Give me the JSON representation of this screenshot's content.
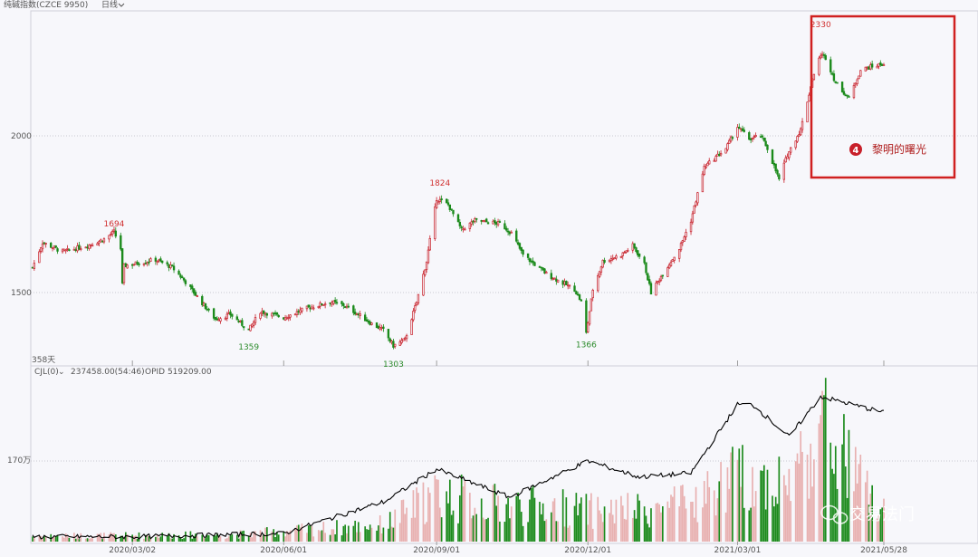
{
  "header": {
    "title": "纯碱指数(CZCE 9950)",
    "period": "日线"
  },
  "price_panel": {
    "yticks": [
      "2000",
      "1500"
    ],
    "days_label": "358天"
  },
  "volume_panel": {
    "indicator": "CJL(0)",
    "indicator_arrow": "⌄",
    "value1": "237458.00(54:46)",
    "value2": "OPID 519209.00",
    "ytick": "170万"
  },
  "annotation": {
    "number": "4",
    "text": "黎明的曙光"
  },
  "watermark": {
    "text": "交易法门"
  },
  "colors": {
    "up": "#c8202a",
    "down": "#1b8a1b",
    "vol_up": "#e8b0b0",
    "vol_down": "#1b8a1b",
    "oi_line": "#000000",
    "box": "#d02020"
  },
  "chart_data": {
    "type": "candlestick",
    "ylim": [
      1300,
      2400
    ],
    "yticks": [
      2000,
      1500
    ],
    "xticks": [
      "2020/03/02",
      "2020/06/01",
      "2020/09/01",
      "2020/12/01",
      "2021/03/01",
      "2021/05/28"
    ],
    "x_range": [
      "2020/01/02",
      "2021/05/28"
    ],
    "close_keypoints": [
      [
        "2020/01/02",
        1580
      ],
      [
        "2020/01/08",
        1660
      ],
      [
        "2020/01/20",
        1630
      ],
      [
        "2020/02/04",
        1650
      ],
      [
        "2020/02/14",
        1670
      ],
      [
        "2020/02/20",
        1694
      ],
      [
        "2020/02/24",
        1640
      ],
      [
        "2020/02/25",
        1525
      ],
      [
        "2020/02/26",
        1585
      ],
      [
        "2020/03/16",
        1605
      ],
      [
        "2020/03/26",
        1580
      ],
      [
        "2020/04/02",
        1540
      ],
      [
        "2020/04/14",
        1460
      ],
      [
        "2020/04/21",
        1415
      ],
      [
        "2020/04/30",
        1430
      ],
      [
        "2020/05/11",
        1380
      ],
      [
        "2020/05/18",
        1440
      ],
      [
        "2020/06/01",
        1420
      ],
      [
        "2020/06/15",
        1450
      ],
      [
        "2020/06/29",
        1470
      ],
      [
        "2020/07/07",
        1460
      ],
      [
        "2020/07/16",
        1430
      ],
      [
        "2020/07/24",
        1400
      ],
      [
        "2020/07/31",
        1380
      ],
      [
        "2020/08/06",
        1330
      ],
      [
        "2020/08/13",
        1350
      ],
      [
        "2020/08/20",
        1470
      ],
      [
        "2020/08/26",
        1600
      ],
      [
        "2020/09/01",
        1800
      ],
      [
        "2020/09/08",
        1780
      ],
      [
        "2020/09/16",
        1700
      ],
      [
        "2020/09/24",
        1730
      ],
      [
        "2020/10/09",
        1720
      ],
      [
        "2020/10/16",
        1690
      ],
      [
        "2020/10/23",
        1620
      ],
      [
        "2020/11/06",
        1560
      ],
      [
        "2020/11/16",
        1530
      ],
      [
        "2020/11/23",
        1510
      ],
      [
        "2020/11/27",
        1470
      ],
      [
        "2020/11/30",
        1370
      ],
      [
        "2020/12/04",
        1510
      ],
      [
        "2020/12/10",
        1600
      ],
      [
        "2020/12/21",
        1620
      ],
      [
        "2020/12/28",
        1650
      ],
      [
        "2021/01/04",
        1590
      ],
      [
        "2021/01/08",
        1500
      ],
      [
        "2021/01/15",
        1560
      ],
      [
        "2021/01/25",
        1640
      ],
      [
        "2021/02/01",
        1730
      ],
      [
        "2021/02/09",
        1900
      ],
      [
        "2021/02/22",
        1960
      ],
      [
        "2021/03/01",
        2030
      ],
      [
        "2021/03/08",
        1990
      ],
      [
        "2021/03/15",
        2000
      ],
      [
        "2021/03/19",
        1960
      ],
      [
        "2021/03/26",
        1860
      ],
      [
        "2021/03/31",
        1940
      ],
      [
        "2021/04/08",
        2020
      ],
      [
        "2021/04/15",
        2180
      ],
      [
        "2021/04/20",
        2260
      ],
      [
        "2021/04/23",
        2250
      ],
      [
        "2021/04/29",
        2170
      ],
      [
        "2021/05/07",
        2120
      ],
      [
        "2021/05/14",
        2210
      ],
      [
        "2021/05/20",
        2220
      ],
      [
        "2021/05/28",
        2230
      ]
    ],
    "highlights": [
      {
        "label": "1694",
        "date": "2020/02/20",
        "value": 1694,
        "kind": "high"
      },
      {
        "label": "1359",
        "date": "2020/05/11",
        "value": 1359,
        "kind": "low"
      },
      {
        "label": "1824",
        "date": "2020/09/03",
        "value": 1824,
        "kind": "high"
      },
      {
        "label": "1303",
        "date": "2020/08/06",
        "value": 1303,
        "kind": "low"
      },
      {
        "label": "1366",
        "date": "2020/11/30",
        "value": 1366,
        "kind": "low"
      },
      {
        "label": "2330",
        "date": "2021/04/20",
        "value": 2330,
        "kind": "high"
      }
    ],
    "volume_keypoints": [
      [
        "2020/01/02",
        0.08
      ],
      [
        "2020/05/01",
        0.1
      ],
      [
        "2020/08/01",
        0.25
      ],
      [
        "2020/09/01",
        0.7
      ],
      [
        "2020/10/01",
        0.55
      ],
      [
        "2020/11/15",
        0.5
      ],
      [
        "2020/12/01",
        0.45
      ],
      [
        "2021/01/01",
        0.45
      ],
      [
        "2021/02/01",
        0.55
      ],
      [
        "2021/03/01",
        0.95
      ],
      [
        "2021/04/01",
        0.85
      ],
      [
        "2021/04/20",
        1.7
      ],
      [
        "2021/05/28",
        0.4
      ]
    ],
    "oi_keypoints": [
      [
        "2020/01/02",
        0.06
      ],
      [
        "2020/03/02",
        0.06
      ],
      [
        "2020/06/01",
        0.1
      ],
      [
        "2020/07/01",
        0.3
      ],
      [
        "2020/08/01",
        0.5
      ],
      [
        "2020/09/01",
        0.9
      ],
      [
        "2020/10/15",
        0.55
      ],
      [
        "2020/12/01",
        1.0
      ],
      [
        "2021/01/01",
        0.8
      ],
      [
        "2021/02/01",
        0.85
      ],
      [
        "2021/03/01",
        1.7
      ],
      [
        "2021/03/10",
        1.7
      ],
      [
        "2021/04/01",
        1.3
      ],
      [
        "2021/04/20",
        1.8
      ],
      [
        "2021/05/28",
        1.6
      ]
    ]
  }
}
